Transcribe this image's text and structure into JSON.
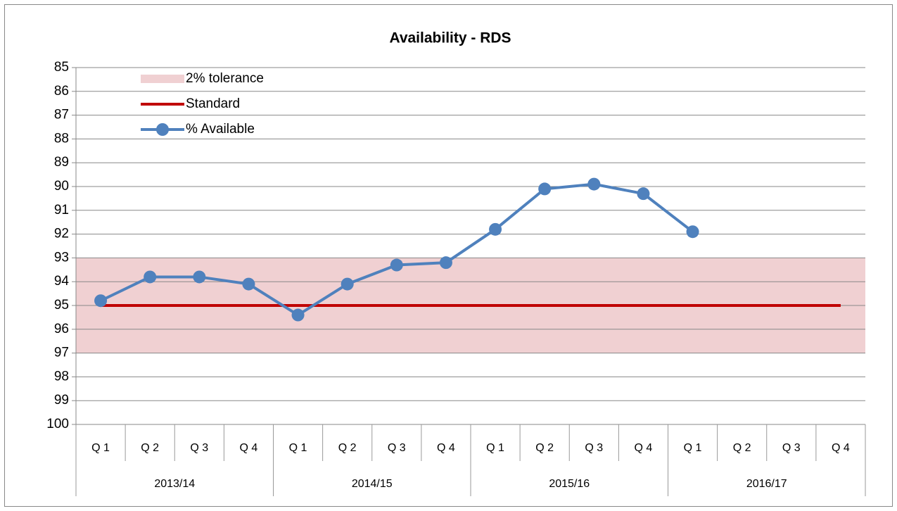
{
  "chart_data": {
    "type": "line",
    "title": "Availability - RDS",
    "categories": [
      "Q 1",
      "Q 2",
      "Q 3",
      "Q 4",
      "Q 1",
      "Q 2",
      "Q 3",
      "Q 4",
      "Q 1",
      "Q 2",
      "Q 3",
      "Q 4",
      "Q 1",
      "Q 2",
      "Q 3",
      "Q 4"
    ],
    "groups": [
      "2013/14",
      "2014/15",
      "2015/16",
      "2016/17"
    ],
    "series": [
      {
        "name": "2% tolerance",
        "color": "#f0d0d2",
        "range": [
          93,
          97
        ]
      },
      {
        "name": "Standard",
        "color": "#c00000",
        "values": [
          95,
          95,
          95,
          95,
          95,
          95,
          95,
          95,
          95,
          95,
          95,
          95,
          95,
          95,
          95,
          95
        ]
      },
      {
        "name": "% Available",
        "color": "#4f81bd",
        "values": [
          94.8,
          93.8,
          93.8,
          94.1,
          95.4,
          94.1,
          93.3,
          93.2,
          91.8,
          90.1,
          89.9,
          90.3,
          91.9,
          null,
          null,
          null
        ]
      }
    ],
    "ylim": [
      85,
      100
    ],
    "yticks": [
      85,
      86,
      87,
      88,
      89,
      90,
      91,
      92,
      93,
      94,
      95,
      96,
      97,
      98,
      99,
      100
    ],
    "y_inverted": true,
    "grid": true,
    "legend": "top-left"
  }
}
